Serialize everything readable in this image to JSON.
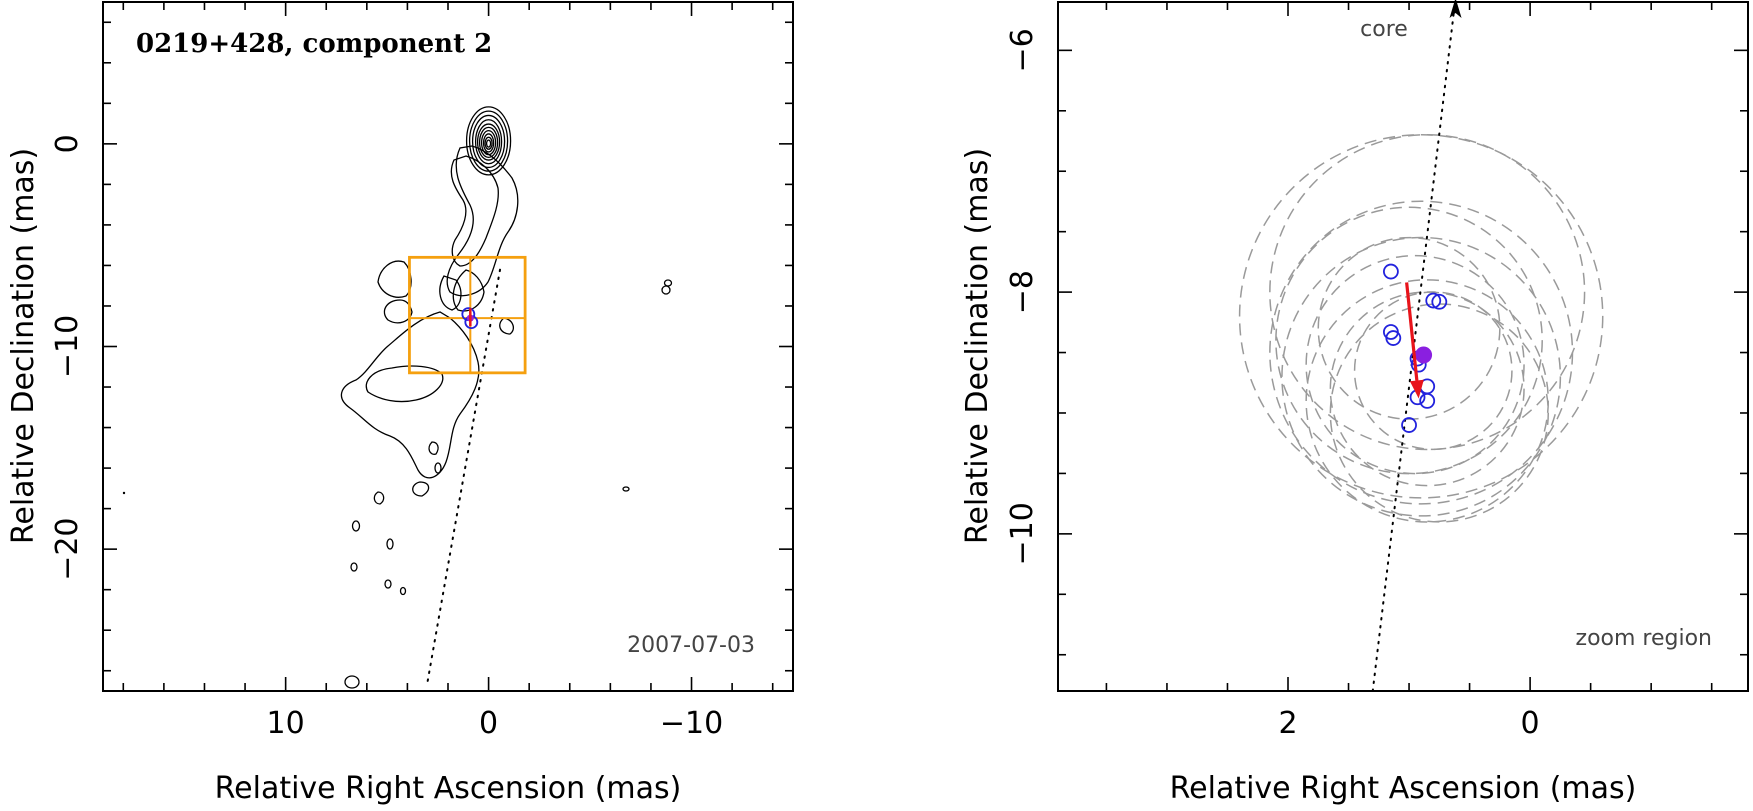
{
  "chart_data": [
    {
      "type": "contour",
      "panel": "left",
      "title": "0219+428, component 2",
      "epoch_label": "2007-07-03",
      "xlabel": "Relative Right Ascension (mas)",
      "ylabel": "Relative Declination (mas)",
      "xlim": [
        19,
        -15
      ],
      "ylim": [
        -27,
        7
      ],
      "xticks": [
        10,
        0,
        -10
      ],
      "xtick_labels": [
        "10",
        "0",
        "−10"
      ],
      "yticks": [
        0,
        -10,
        -20
      ],
      "ytick_labels": [
        "0",
        "−10",
        "−20"
      ],
      "core_position": [
        0,
        0
      ],
      "component_position": [
        0.9,
        -8.6
      ],
      "zoom_region": {
        "ra": [
          -1.8,
          3.9
        ],
        "dec": [
          -11.3,
          -5.6
        ]
      },
      "trajectory_line": [
        [
          3,
          -26.5
        ],
        [
          -0.6,
          -6
        ]
      ]
    },
    {
      "type": "scatter",
      "panel": "right",
      "label_core": "core",
      "label_zoom": "zoom region",
      "xlabel": "Relative Right Ascension (mas)",
      "ylabel": "Relative Declination (mas)",
      "xlim": [
        3.9,
        -1.8
      ],
      "ylim": [
        -11.3,
        -5.6
      ],
      "xticks": [
        2,
        0
      ],
      "xtick_labels": [
        "2",
        "0"
      ],
      "yticks": [
        -6,
        -8,
        -10
      ],
      "ytick_labels": [
        "−6",
        "−8",
        "−10"
      ],
      "epoch_positions": [
        {
          "ra": 1.15,
          "dec": -7.83
        },
        {
          "ra": 0.8,
          "dec": -8.07
        },
        {
          "ra": 0.75,
          "dec": -8.08
        },
        {
          "ra": 1.15,
          "dec": -8.33
        },
        {
          "ra": 1.13,
          "dec": -8.38
        },
        {
          "ra": 0.93,
          "dec": -8.55
        },
        {
          "ra": 0.92,
          "dec": -8.6
        },
        {
          "ra": 0.85,
          "dec": -8.78
        },
        {
          "ra": 0.93,
          "dec": -8.87
        },
        {
          "ra": 0.85,
          "dec": -8.9
        },
        {
          "ra": 1.0,
          "dec": -9.1
        }
      ],
      "mean_position": {
        "ra": 0.88,
        "dec": -8.52
      },
      "velocity_vector": {
        "from": [
          1.02,
          -7.92
        ],
        "to": [
          0.92,
          -8.88
        ]
      },
      "uncertainty_circles": [
        {
          "ra": 0.9,
          "dec": -8.2,
          "r": 1.5
        },
        {
          "ra": 0.85,
          "dec": -8.0,
          "r": 1.3
        },
        {
          "ra": 0.9,
          "dec": -8.5,
          "r": 1.25
        },
        {
          "ra": 0.9,
          "dec": -8.7,
          "r": 1.15
        },
        {
          "ra": 1.0,
          "dec": -8.4,
          "r": 1.1
        },
        {
          "ra": 0.85,
          "dec": -8.9,
          "r": 1.0
        },
        {
          "ra": 0.95,
          "dec": -8.6,
          "r": 0.9
        },
        {
          "ra": 0.85,
          "dec": -8.8,
          "r": 0.8
        },
        {
          "ra": 1.0,
          "dec": -8.3,
          "r": 0.75
        },
        {
          "ra": 0.75,
          "dec": -9.0,
          "r": 0.9
        },
        {
          "ra": 0.8,
          "dec": -8.65,
          "r": 0.65
        }
      ],
      "trajectory_line": [
        [
          1.3,
          -11.3
        ],
        [
          0.62,
          -5.6
        ]
      ]
    }
  ]
}
